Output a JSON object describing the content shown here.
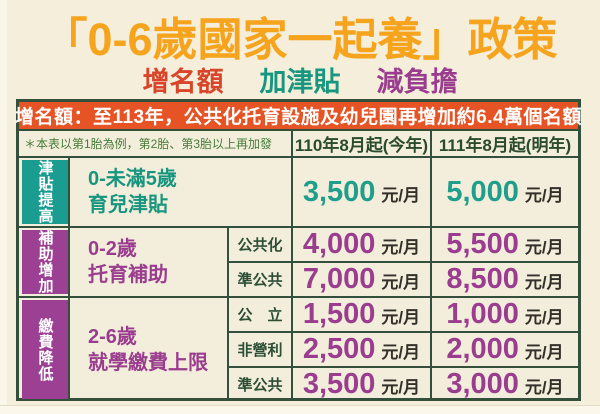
{
  "title": "「0-6歲國家一起養」政策",
  "subtitle": {
    "items": [
      {
        "label": "增名額",
        "color": "#d9452a"
      },
      {
        "label": "加津貼",
        "color": "#17977f"
      },
      {
        "label": "減負擔",
        "color": "#9a3d8f"
      }
    ]
  },
  "banner": "增名額：至113年，公共化托育設施及幼兒園再增加約6.4萬個名額",
  "header": {
    "note": "＊本表以第1胎為例，第2胎、第3胎以上再加發",
    "col_this_year": "110年8月起(今年)",
    "col_next_year": "111年8月起(明年)"
  },
  "rows": [
    {
      "side": "津貼提高",
      "desc_line1": "0-未滿5歲",
      "desc_line2": "育兒津貼",
      "values": [
        {
          "amount": "3,500",
          "unit": "元/月"
        },
        {
          "amount": "5,000",
          "unit": "元/月"
        }
      ]
    },
    {
      "side": "補助增加",
      "desc_line1": "0-2歲",
      "desc_line2": "托育補助",
      "subrows": [
        {
          "type": "公共化",
          "values": [
            {
              "amount": "4,000",
              "unit": "元/月"
            },
            {
              "amount": "5,500",
              "unit": "元/月"
            }
          ]
        },
        {
          "type": "準公共",
          "values": [
            {
              "amount": "7,000",
              "unit": "元/月"
            },
            {
              "amount": "8,500",
              "unit": "元/月"
            }
          ]
        }
      ]
    },
    {
      "side": "繳費降低",
      "desc_line1": "2-6歲",
      "desc_line2": "就學繳費上限",
      "subrows": [
        {
          "type": "公　立",
          "values": [
            {
              "amount": "1,500",
              "unit": "元/月"
            },
            {
              "amount": "1,000",
              "unit": "元/月"
            }
          ]
        },
        {
          "type": "非營利",
          "values": [
            {
              "amount": "2,500",
              "unit": "元/月"
            },
            {
              "amount": "2,000",
              "unit": "元/月"
            }
          ]
        },
        {
          "type": "準公共",
          "values": [
            {
              "amount": "3,500",
              "unit": "元/月"
            },
            {
              "amount": "3,000",
              "unit": "元/月"
            }
          ]
        }
      ]
    }
  ],
  "colors": {
    "page_bg": "#f4eeda",
    "title_orange": "#f6a41e",
    "banner_bg": "#e65426",
    "border_green": "#32503c",
    "header_text_green": "#2b4b2f",
    "note_green": "#477c38",
    "teal": "#1b9c90",
    "purple": "#9c4093",
    "unit_text": "#33302a"
  }
}
